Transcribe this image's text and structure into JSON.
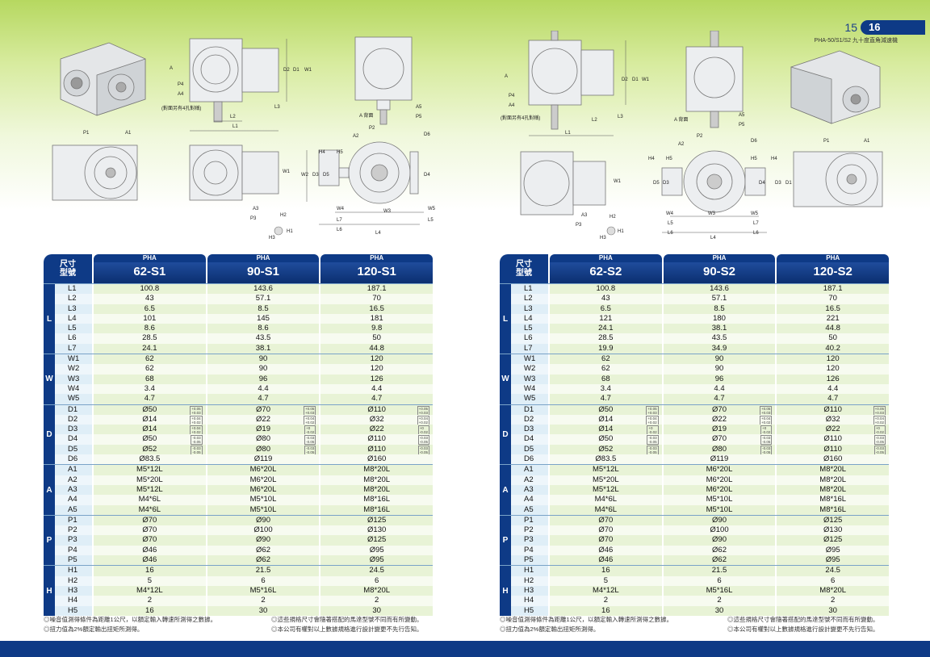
{
  "header": {
    "page_left": "15",
    "page_right": "16",
    "series_note": "PHA-50/S1/S2 九十度直角減速機"
  },
  "drawing_labels": {
    "left": [
      "A",
      "P4",
      "A4",
      "(對面另有4孔對稱)",
      "L2",
      "L3",
      "L1",
      "D2",
      "D1",
      "W1",
      "A 背面",
      "A5",
      "P5",
      "P1",
      "A1",
      "W1",
      "A3",
      "P3",
      "H4",
      "H5",
      "A2",
      "P2",
      "D6",
      "W2",
      "D3",
      "D5",
      "D4",
      "W4",
      "L7",
      "L6",
      "W3",
      "W5",
      "L5",
      "L4",
      "H2",
      "H3",
      "H1"
    ],
    "right": [
      "A",
      "P4",
      "A4",
      "(對面另有4孔對稱)",
      "L2",
      "L1",
      "D2",
      "D1",
      "W1",
      "L3",
      "A 背面",
      "A5",
      "P5",
      "A2",
      "P2",
      "D6",
      "W1",
      "H4",
      "H5",
      "D5",
      "D3",
      "D4",
      "H5",
      "H4",
      "D3",
      "D1",
      "A3",
      "P3",
      "H2",
      "H3",
      "H1",
      "W4",
      "L5",
      "L6",
      "W3",
      "W5",
      "L7",
      "L6",
      "L4",
      "P1",
      "A1"
    ]
  },
  "tables": [
    {
      "corner_top": "尺寸",
      "corner_bottom": "型號",
      "columns": [
        {
          "series": "PHA",
          "model": "62-S1"
        },
        {
          "series": "PHA",
          "model": "90-S1"
        },
        {
          "series": "PHA",
          "model": "120-S1"
        }
      ],
      "groups": [
        {
          "label": "L",
          "rows": [
            {
              "key": "L1",
              "values": [
                "100.8",
                "143.6",
                "187.1"
              ]
            },
            {
              "key": "L2",
              "values": [
                "43",
                "57.1",
                "70"
              ]
            },
            {
              "key": "L3",
              "values": [
                "6.5",
                "8.5",
                "16.5"
              ]
            },
            {
              "key": "L4",
              "values": [
                "101",
                "145",
                "181"
              ]
            },
            {
              "key": "L5",
              "values": [
                "8.6",
                "8.6",
                "9.8"
              ]
            },
            {
              "key": "L6",
              "values": [
                "28.5",
                "43.5",
                "50"
              ]
            },
            {
              "key": "L7",
              "values": [
                "24.1",
                "38.1",
                "44.8"
              ]
            }
          ]
        },
        {
          "label": "W",
          "rows": [
            {
              "key": "W1",
              "values": [
                "62",
                "90",
                "120"
              ]
            },
            {
              "key": "W2",
              "values": [
                "62",
                "90",
                "120"
              ]
            },
            {
              "key": "W3",
              "values": [
                "68",
                "96",
                "126"
              ]
            },
            {
              "key": "W4",
              "values": [
                "3.4",
                "4.4",
                "4.4"
              ]
            },
            {
              "key": "W5",
              "values": [
                "4.7",
                "4.7",
                "4.7"
              ]
            }
          ]
        },
        {
          "label": "D",
          "rows": [
            {
              "key": "D1",
              "values": [
                "Ø50",
                "Ø70",
                "Ø110"
              ],
              "tol": [
                "+0.05 +0.03",
                "+0.05 +0.03",
                "+0.05 +0.03"
              ]
            },
            {
              "key": "D2",
              "values": [
                "Ø14",
                "Ø22",
                "Ø32"
              ],
              "tol": [
                "+0.04 +0.02",
                "+0.04 +0.02",
                "+0.04 +0.02"
              ]
            },
            {
              "key": "D3",
              "values": [
                "Ø14",
                "Ø19",
                "Ø22"
              ],
              "tol": [
                "+0.04 +0.02",
                "+0 -0.02",
                "+0 -0.02"
              ]
            },
            {
              "key": "D4",
              "values": [
                "Ø50",
                "Ø80",
                "Ø110"
              ],
              "tol": [
                "-0.03 -0.05",
                "-0.03 -0.05",
                "-0.03 -0.05"
              ]
            },
            {
              "key": "D5",
              "values": [
                "Ø52",
                "Ø80",
                "Ø110"
              ],
              "tol": [
                "-0.03 -0.05",
                "-0.03 -0.05",
                "-0.03 -0.05"
              ]
            },
            {
              "key": "D6",
              "values": [
                "Ø83.5",
                "Ø119",
                "Ø160"
              ]
            }
          ]
        },
        {
          "label": "A",
          "rows": [
            {
              "key": "A1",
              "values": [
                "M5*12L",
                "M6*20L",
                "M8*20L"
              ]
            },
            {
              "key": "A2",
              "values": [
                "M5*20L",
                "M6*20L",
                "M8*20L"
              ]
            },
            {
              "key": "A3",
              "values": [
                "M5*12L",
                "M6*20L",
                "M8*20L"
              ]
            },
            {
              "key": "A4",
              "values": [
                "M4*6L",
                "M5*10L",
                "M8*16L"
              ]
            },
            {
              "key": "A5",
              "values": [
                "M4*6L",
                "M5*10L",
                "M8*16L"
              ]
            }
          ]
        },
        {
          "label": "P",
          "rows": [
            {
              "key": "P1",
              "values": [
                "Ø70",
                "Ø90",
                "Ø125"
              ]
            },
            {
              "key": "P2",
              "values": [
                "Ø70",
                "Ø100",
                "Ø130"
              ]
            },
            {
              "key": "P3",
              "values": [
                "Ø70",
                "Ø90",
                "Ø125"
              ]
            },
            {
              "key": "P4",
              "values": [
                "Ø46",
                "Ø62",
                "Ø95"
              ]
            },
            {
              "key": "P5",
              "values": [
                "Ø46",
                "Ø62",
                "Ø95"
              ]
            }
          ]
        },
        {
          "label": "H",
          "rows": [
            {
              "key": "H1",
              "values": [
                "16",
                "21.5",
                "24.5"
              ]
            },
            {
              "key": "H2",
              "values": [
                "5",
                "6",
                "6"
              ]
            },
            {
              "key": "H3",
              "values": [
                "M4*12L",
                "M5*16L",
                "M8*20L"
              ]
            },
            {
              "key": "H4",
              "values": [
                "2",
                "2",
                "2"
              ]
            },
            {
              "key": "H5",
              "values": [
                "16",
                "30",
                "30"
              ]
            }
          ]
        }
      ],
      "notes": [
        "◎噪音值測得條件為距離1公尺，以額定輸入轉速所測得之數據。",
        "◎這些規格尺寸會隨著搭配的馬達型號不同而有所變動。",
        "◎扭力值為2%額定輸出扭矩所測得。",
        "◎本公司有權對以上數據規格進行設計變更不先行告知。"
      ]
    },
    {
      "corner_top": "尺寸",
      "corner_bottom": "型號",
      "columns": [
        {
          "series": "PHA",
          "model": "62-S2"
        },
        {
          "series": "PHA",
          "model": "90-S2"
        },
        {
          "series": "PHA",
          "model": "120-S2"
        }
      ],
      "groups": [
        {
          "label": "L",
          "rows": [
            {
              "key": "L1",
              "values": [
                "100.8",
                "143.6",
                "187.1"
              ]
            },
            {
              "key": "L2",
              "values": [
                "43",
                "57.1",
                "70"
              ]
            },
            {
              "key": "L3",
              "values": [
                "6.5",
                "8.5",
                "16.5"
              ]
            },
            {
              "key": "L4",
              "values": [
                "121",
                "180",
                "221"
              ]
            },
            {
              "key": "L5",
              "values": [
                "24.1",
                "38.1",
                "44.8"
              ]
            },
            {
              "key": "L6",
              "values": [
                "28.5",
                "43.5",
                "50"
              ]
            },
            {
              "key": "L7",
              "values": [
                "19.9",
                "34.9",
                "40.2"
              ]
            }
          ]
        },
        {
          "label": "W",
          "rows": [
            {
              "key": "W1",
              "values": [
                "62",
                "90",
                "120"
              ]
            },
            {
              "key": "W2",
              "values": [
                "62",
                "90",
                "120"
              ]
            },
            {
              "key": "W3",
              "values": [
                "68",
                "96",
                "126"
              ]
            },
            {
              "key": "W4",
              "values": [
                "3.4",
                "4.4",
                "4.4"
              ]
            },
            {
              "key": "W5",
              "values": [
                "4.7",
                "4.7",
                "4.7"
              ]
            }
          ]
        },
        {
          "label": "D",
          "rows": [
            {
              "key": "D1",
              "values": [
                "Ø50",
                "Ø70",
                "Ø110"
              ],
              "tol": [
                "+0.05 +0.03",
                "+0.05 +0.03",
                "+0.05 +0.03"
              ]
            },
            {
              "key": "D2",
              "values": [
                "Ø14",
                "Ø22",
                "Ø32"
              ],
              "tol": [
                "+0.04 +0.02",
                "+0.04 +0.02",
                "+0.04 +0.02"
              ]
            },
            {
              "key": "D3",
              "values": [
                "Ø14",
                "Ø19",
                "Ø22"
              ],
              "tol": [
                "+0 -0.02",
                "+0 -0.02",
                "+0 -0.02"
              ]
            },
            {
              "key": "D4",
              "values": [
                "Ø50",
                "Ø70",
                "Ø110"
              ],
              "tol": [
                "-0.03 -0.05",
                "-0.03 -0.05",
                "-0.03 -0.05"
              ]
            },
            {
              "key": "D5",
              "values": [
                "Ø52",
                "Ø80",
                "Ø110"
              ],
              "tol": [
                "-0.03 -0.05",
                "-0.03 -0.05",
                "-0.03 -0.05"
              ]
            },
            {
              "key": "D6",
              "values": [
                "Ø83.5",
                "Ø119",
                "Ø160"
              ]
            }
          ]
        },
        {
          "label": "A",
          "rows": [
            {
              "key": "A1",
              "values": [
                "M5*12L",
                "M6*20L",
                "M8*20L"
              ]
            },
            {
              "key": "A2",
              "values": [
                "M5*20L",
                "M6*20L",
                "M8*20L"
              ]
            },
            {
              "key": "A3",
              "values": [
                "M5*12L",
                "M6*20L",
                "M8*20L"
              ]
            },
            {
              "key": "A4",
              "values": [
                "M4*6L",
                "M5*10L",
                "M8*16L"
              ]
            },
            {
              "key": "A5",
              "values": [
                "M4*6L",
                "M5*10L",
                "M8*16L"
              ]
            }
          ]
        },
        {
          "label": "P",
          "rows": [
            {
              "key": "P1",
              "values": [
                "Ø70",
                "Ø90",
                "Ø125"
              ]
            },
            {
              "key": "P2",
              "values": [
                "Ø70",
                "Ø100",
                "Ø130"
              ]
            },
            {
              "key": "P3",
              "values": [
                "Ø70",
                "Ø90",
                "Ø125"
              ]
            },
            {
              "key": "P4",
              "values": [
                "Ø46",
                "Ø62",
                "Ø95"
              ]
            },
            {
              "key": "P5",
              "values": [
                "Ø46",
                "Ø62",
                "Ø95"
              ]
            }
          ]
        },
        {
          "label": "H",
          "rows": [
            {
              "key": "H1",
              "values": [
                "16",
                "21.5",
                "24.5"
              ]
            },
            {
              "key": "H2",
              "values": [
                "5",
                "6",
                "6"
              ]
            },
            {
              "key": "H3",
              "values": [
                "M4*12L",
                "M5*16L",
                "M8*20L"
              ]
            },
            {
              "key": "H4",
              "values": [
                "2",
                "2",
                "2"
              ]
            },
            {
              "key": "H5",
              "values": [
                "16",
                "30",
                "30"
              ]
            }
          ]
        }
      ],
      "notes": [
        "◎噪音值測得條件為距離1公尺，以額定輸入轉速所測得之數據。",
        "◎這些規格尺寸會隨著搭配的馬達型號不同而有所變動。",
        "◎扭力值為2%額定輸出扭矩所測得。",
        "◎本公司有權對以上數據規格進行設計變更不先行告知。"
      ]
    }
  ]
}
